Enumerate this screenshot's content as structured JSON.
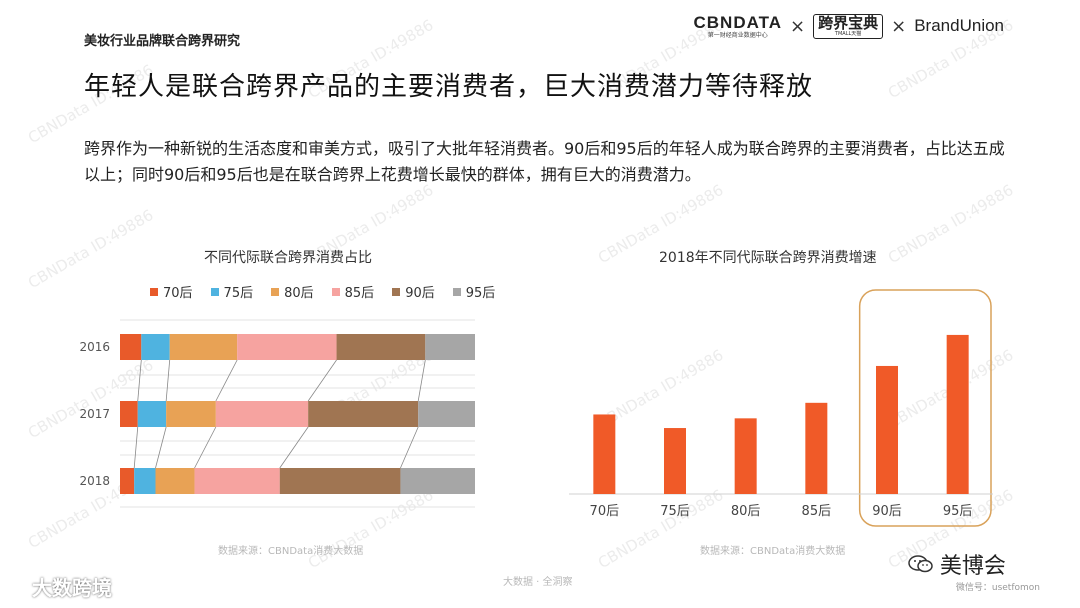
{
  "header": {
    "report_label": "美妆行业品牌联合跨界研究",
    "logos": {
      "cbn_main": "CBNDATA",
      "cbn_sub": "第一财经商业数据中心",
      "separator": "×",
      "tmall_main": "跨界宝典",
      "tmall_sub": "TMALL天猫",
      "brandunion": "BrandUnion"
    }
  },
  "headline": "年轻人是联合跨界产品的主要消费者，巨大消费潜力等待释放",
  "body_text": "跨界作为一种新锐的生活态度和审美方式，吸引了大批年轻消费者。90后和95后的年轻人成为联合跨界的主要消费者，占比达五成以上；同时90后和95后也是在联合跨界上花费增长最快的群体，拥有巨大的消费潜力。",
  "watermark": "CBNData ID:49886",
  "colors": {
    "70后": "#e85a2a",
    "75后": "#4fb3e0",
    "80后": "#e8a255",
    "85后": "#f6a3a0",
    "90后": "#a07552",
    "95后": "#a6a6a6",
    "bar": "#f05a28",
    "highlight": "#d9a25a"
  },
  "chart_data": [
    {
      "type": "bar",
      "orientation": "horizontal",
      "stacked": true,
      "title": "不同代际联合跨界消费占比",
      "categories": [
        "2016",
        "2017",
        "2018"
      ],
      "series": [
        {
          "name": "70后",
          "values": [
            6,
            5,
            4
          ]
        },
        {
          "name": "75后",
          "values": [
            8,
            8,
            6
          ]
        },
        {
          "name": "80后",
          "values": [
            19,
            14,
            11
          ]
        },
        {
          "name": "85后",
          "values": [
            28,
            26,
            24
          ]
        },
        {
          "name": "90后",
          "values": [
            25,
            31,
            34
          ]
        },
        {
          "name": "95后",
          "values": [
            14,
            16,
            21
          ]
        }
      ],
      "xlim": [
        0,
        100
      ],
      "legend_position": "top",
      "grid": true,
      "source": "数据来源：CBNData消费大数据"
    },
    {
      "type": "bar",
      "title": "2018年不同代际联合跨界消费增速",
      "categories": [
        "70后",
        "75后",
        "80后",
        "85后",
        "90后",
        "95后"
      ],
      "values": [
        41,
        34,
        39,
        47,
        66,
        82
      ],
      "ylim": [
        0,
        100
      ],
      "y_axis_labels": false,
      "highlighted_categories": [
        "90后",
        "95后"
      ],
      "source": "数据来源：CBNData消费大数据"
    }
  ],
  "footer": {
    "left_brand": "大数跨境",
    "center_text": "大数据 · 全洞察",
    "right_brand": "美博会",
    "right_site": "微信号：usetfomon"
  }
}
